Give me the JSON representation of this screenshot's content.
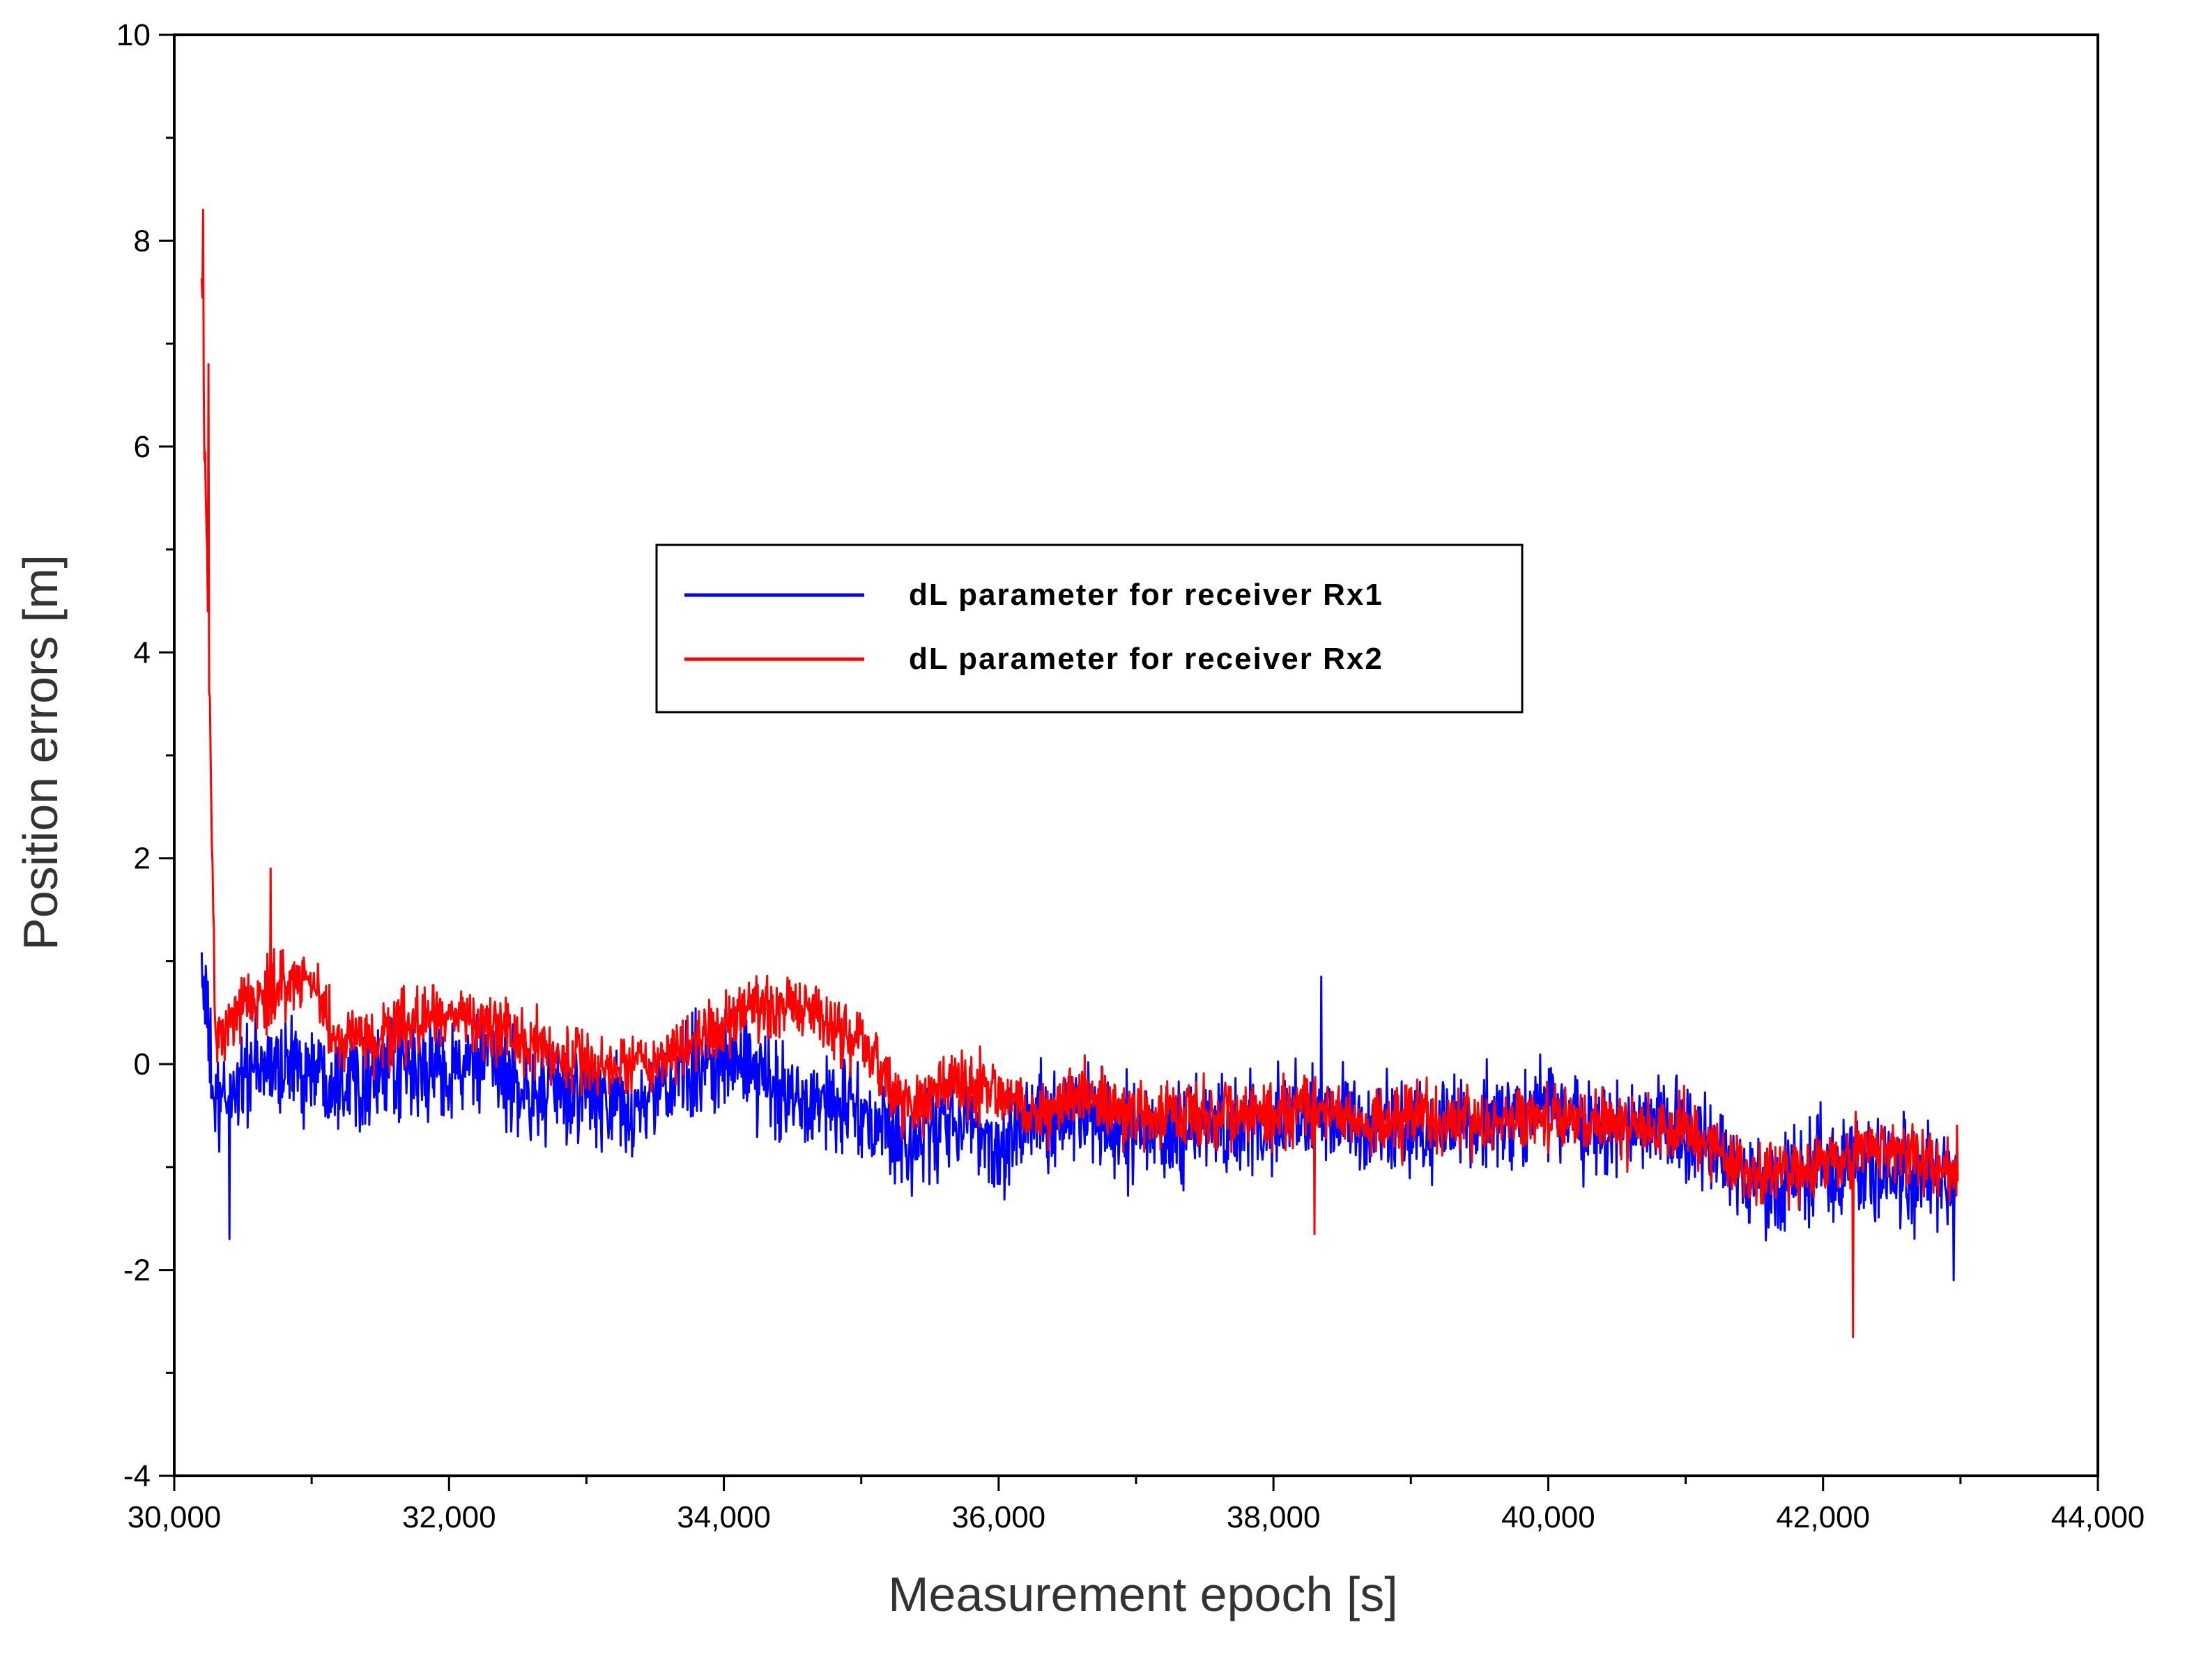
{
  "chart_data": {
    "type": "line",
    "title": "",
    "xlabel": "Measurement epoch [s]",
    "ylabel": "Position errors [m]",
    "xlim": [
      30000,
      44000
    ],
    "ylim": [
      -4,
      10
    ],
    "xticks": [
      30000,
      32000,
      34000,
      36000,
      38000,
      40000,
      42000,
      44000
    ],
    "xtick_labels": [
      "30,000",
      "32,000",
      "34,000",
      "36,000",
      "38,000",
      "40,000",
      "42,000",
      "44,000"
    ],
    "yticks": [
      -4,
      -2,
      0,
      2,
      4,
      6,
      8,
      10
    ],
    "ytick_labels": [
      "-4",
      "-2",
      "0",
      "2",
      "4",
      "6",
      "8",
      "10"
    ],
    "grid": false,
    "legend_position": "center",
    "colors": {
      "rx1": "#0000ff",
      "rx2": "#ff0000"
    },
    "x_range": [
      30200,
      42980
    ],
    "series": [
      {
        "name": "dL parameter for receiver Rx1",
        "color": "#0000ff",
        "trend_x": [
          30200,
          30300,
          30500,
          30800,
          31200,
          31500,
          32000,
          32300,
          32600,
          33000,
          33300,
          33600,
          34000,
          34300,
          34600,
          35000,
          35300,
          35700,
          36000,
          36300,
          36700,
          37000,
          37500,
          38000,
          38300,
          38700,
          39000,
          39500,
          40000,
          40500,
          41000,
          41300,
          41600,
          42000,
          42300,
          42600,
          42980
        ],
        "trend_y": [
          1.0,
          -0.5,
          -0.1,
          0.0,
          -0.1,
          -0.1,
          -0.05,
          0.0,
          -0.3,
          -0.3,
          -0.5,
          -0.2,
          0.1,
          -0.2,
          -0.3,
          -0.5,
          -0.8,
          -0.5,
          -0.8,
          -0.5,
          -0.5,
          -0.7,
          -0.6,
          -0.6,
          -0.5,
          -0.6,
          -0.6,
          -0.6,
          -0.5,
          -0.6,
          -0.6,
          -1.0,
          -1.2,
          -1.0,
          -0.9,
          -1.0,
          -1.2
        ],
        "noise_amplitude": 0.45
      },
      {
        "name": "dL parameter for receiver Rx2",
        "color": "#ff0000",
        "trend_x": [
          30200,
          30300,
          30500,
          30800,
          31000,
          31200,
          31600,
          32000,
          32300,
          32600,
          33000,
          33300,
          33600,
          34000,
          34300,
          34600,
          35000,
          35300,
          35700,
          36000,
          36300,
          36700,
          37000,
          37500,
          38000,
          38300,
          38700,
          39000,
          39500,
          40000,
          40500,
          41000,
          41300,
          41600,
          42000,
          42300,
          42600,
          42980
        ],
        "trend_y": [
          7.8,
          0.2,
          0.5,
          0.8,
          0.8,
          0.2,
          0.3,
          0.5,
          0.4,
          0.2,
          0.0,
          -0.1,
          0.1,
          0.4,
          0.5,
          0.6,
          0.2,
          -0.4,
          -0.2,
          -0.3,
          -0.5,
          -0.3,
          -0.5,
          -0.5,
          -0.5,
          -0.4,
          -0.6,
          -0.5,
          -0.6,
          -0.5,
          -0.6,
          -0.6,
          -1.0,
          -1.1,
          -1.0,
          -0.8,
          -0.9,
          -1.0
        ],
        "noise_amplitude": 0.3
      }
    ],
    "annotations": [
      {
        "series": "dL parameter for receiver Rx2",
        "x": 30210,
        "y": 8.3
      },
      {
        "series": "dL parameter for receiver Rx2",
        "x": 30250,
        "y": 6.8
      },
      {
        "series": "dL parameter for receiver Rx1",
        "x": 30400,
        "y": -1.7
      },
      {
        "series": "dL parameter for receiver Rx2",
        "x": 30700,
        "y": 1.9
      },
      {
        "series": "dL parameter for receiver Rx1",
        "x": 38350,
        "y": 0.85
      },
      {
        "series": "dL parameter for receiver Rx2",
        "x": 38300,
        "y": -1.65
      },
      {
        "series": "dL parameter for receiver Rx2",
        "x": 42220,
        "y": -2.65
      },
      {
        "series": "dL parameter for receiver Rx1",
        "x": 42950,
        "y": -2.1
      }
    ]
  }
}
